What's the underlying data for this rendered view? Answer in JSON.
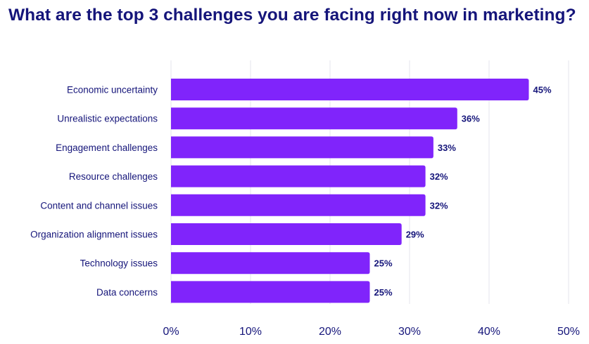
{
  "chart_data": {
    "type": "bar",
    "orientation": "horizontal",
    "title": "What are the top 3 challenges you are facing right now in marketing?",
    "categories": [
      "Economic uncertainty",
      "Unrealistic expectations",
      "Engagement challenges",
      "Resource challenges",
      "Content and channel issues",
      "Organization alignment issues",
      "Technology issues",
      "Data concerns"
    ],
    "values": [
      45,
      36,
      33,
      32,
      32,
      29,
      25,
      25
    ],
    "value_labels": [
      "45%",
      "36%",
      "33%",
      "32%",
      "32%",
      "29%",
      "25%",
      "25%"
    ],
    "xlim": [
      0,
      50
    ],
    "xticks": [
      0,
      10,
      20,
      30,
      40,
      50
    ],
    "xtick_labels": [
      "0%",
      "10%",
      "20%",
      "30%",
      "40%",
      "50%"
    ],
    "xlabel": "",
    "ylabel": "",
    "grid": true,
    "colors": {
      "bar": "#8024fb",
      "text": "#15157a",
      "grid": "#e4e4ee"
    }
  }
}
